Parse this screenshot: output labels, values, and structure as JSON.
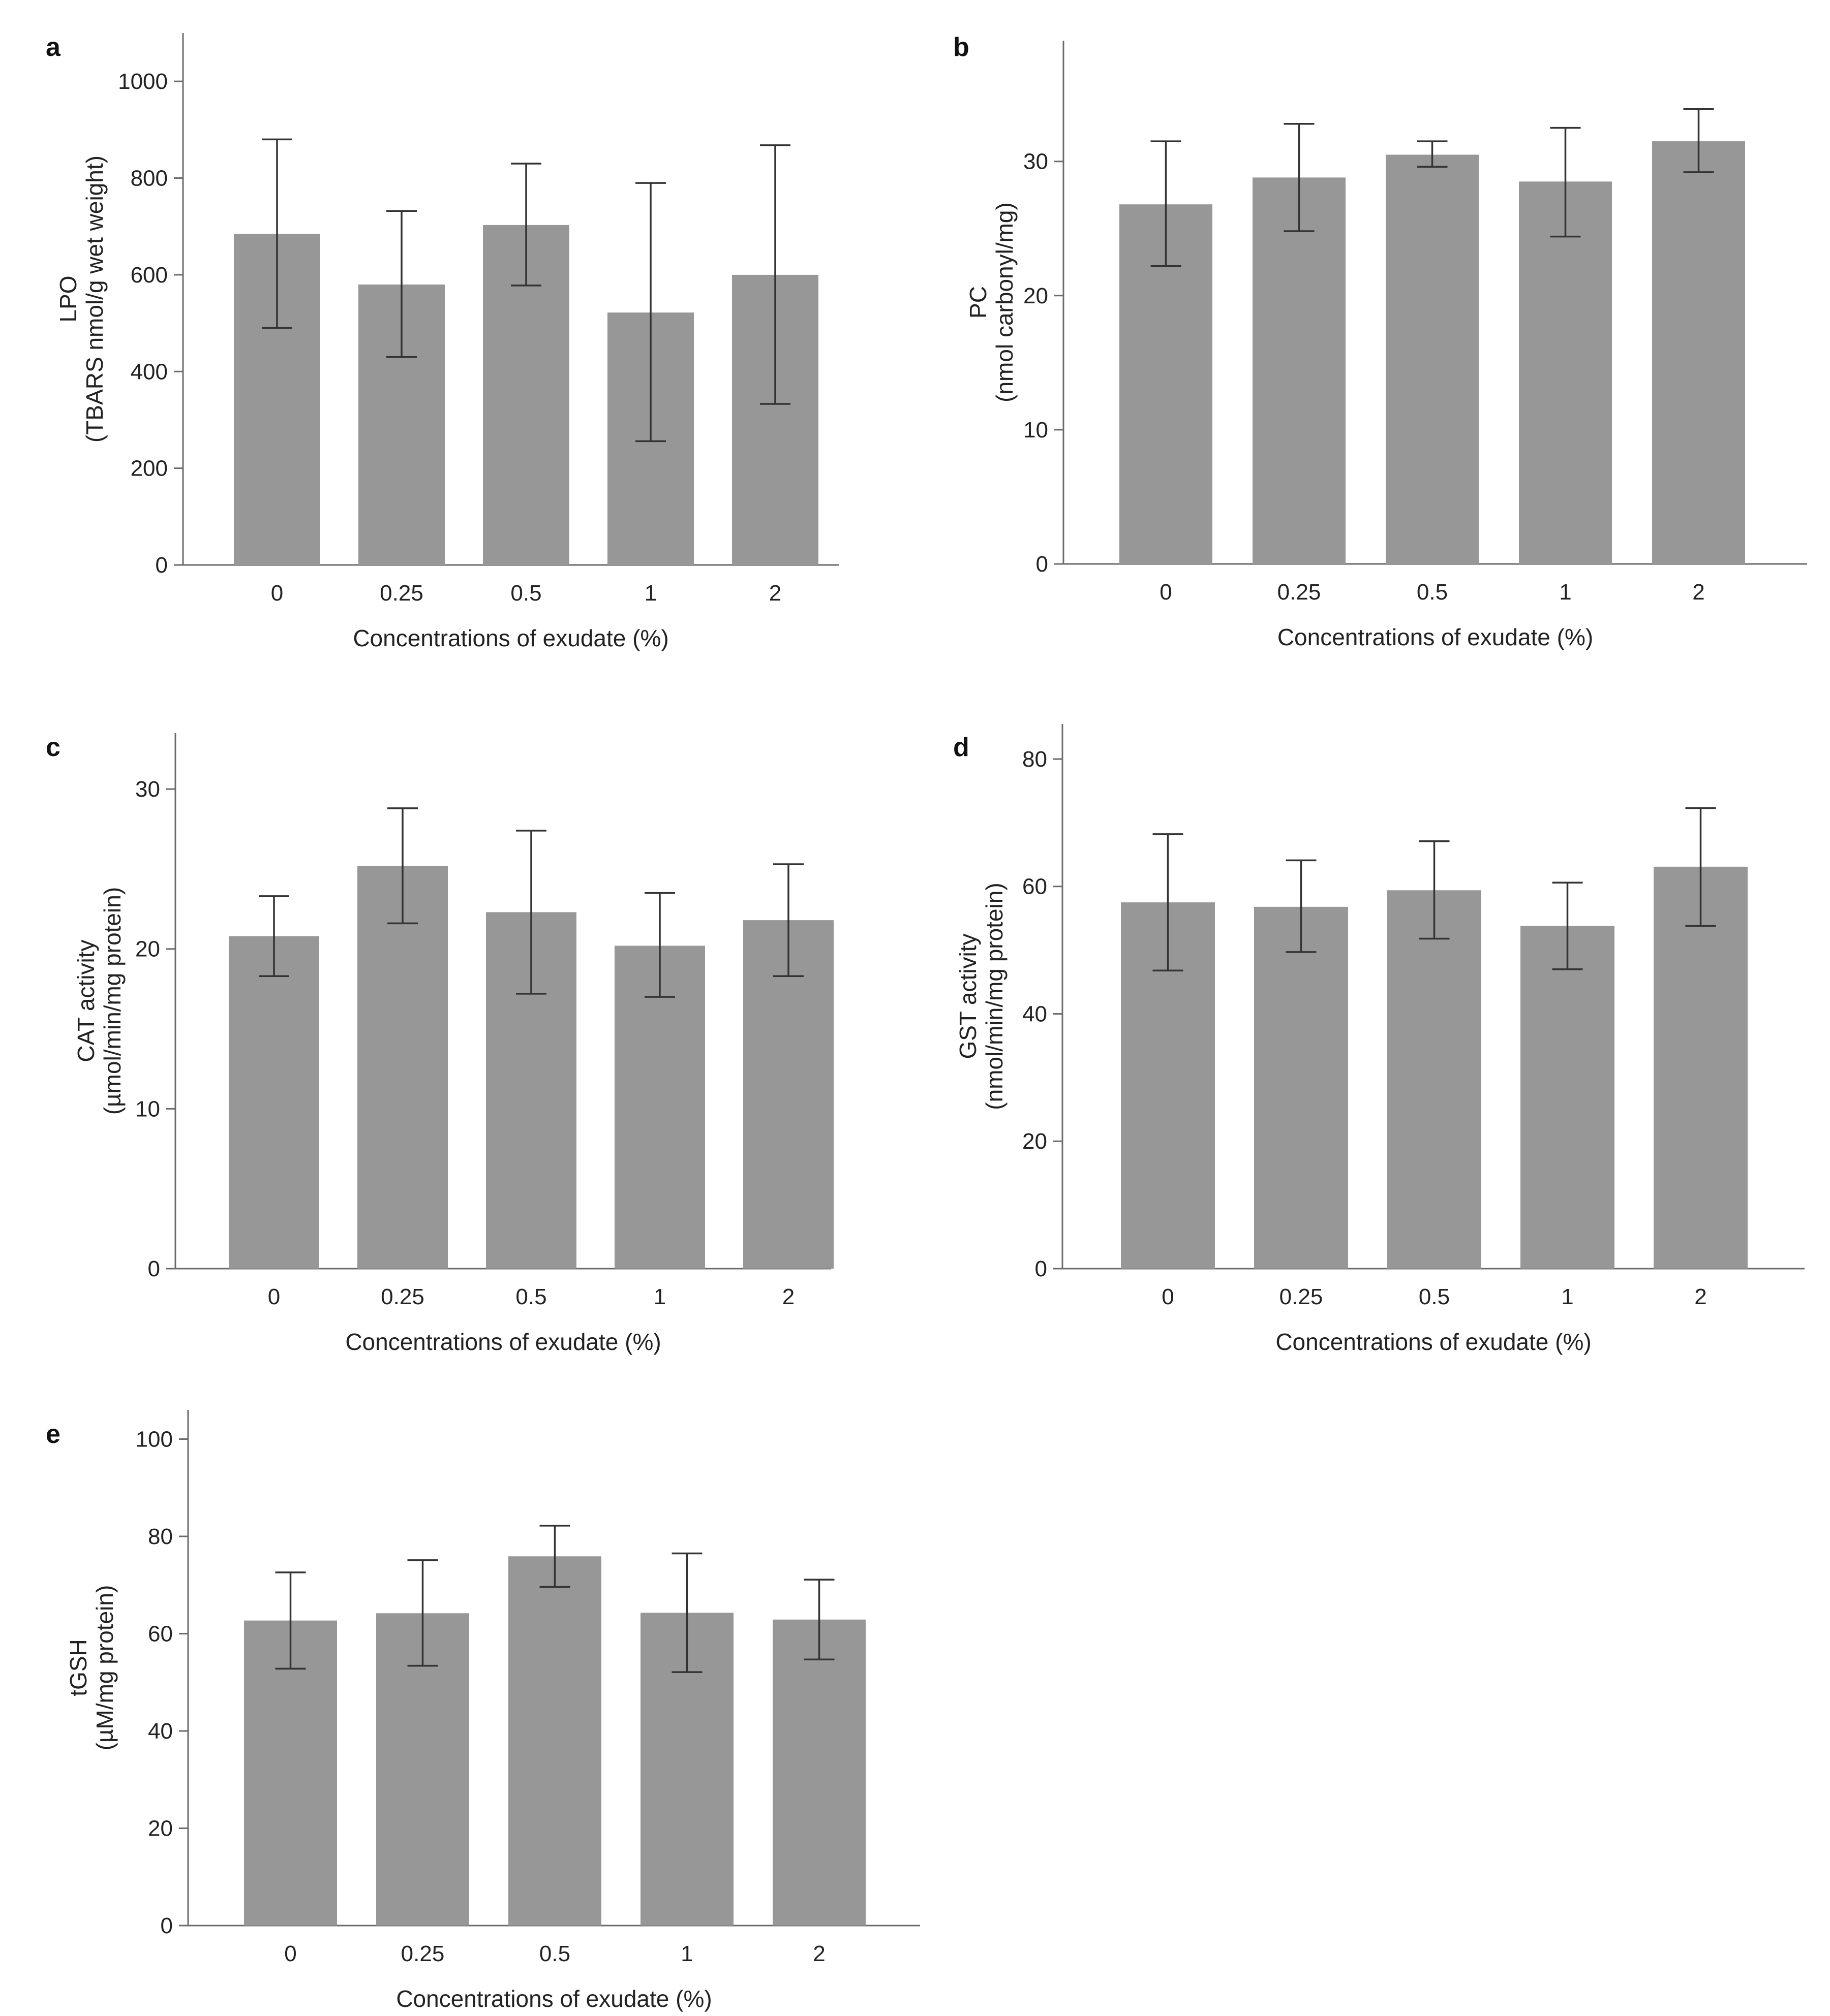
{
  "chart_data": [
    {
      "id": "a",
      "type": "bar",
      "panel_label": "a",
      "categories": [
        "0",
        "0.25",
        "0.5",
        "1",
        "2"
      ],
      "values": [
        685,
        580,
        703,
        522,
        600
      ],
      "errors": [
        [
          490,
          880
        ],
        [
          430,
          732
        ],
        [
          578,
          830
        ],
        [
          256,
          790
        ],
        [
          333,
          868
        ]
      ],
      "xlabel": "Concentrations of exudate (%)",
      "ylabel_lines": [
        "LPO",
        "(TBARS nmol/g wet weight)"
      ],
      "ylim": [
        0,
        1100
      ],
      "yticks": [
        0,
        200,
        400,
        600,
        800,
        1000
      ],
      "grid": false
    },
    {
      "id": "b",
      "type": "bar",
      "panel_label": "b",
      "categories": [
        "0",
        "0.25",
        "0.5",
        "1",
        "2"
      ],
      "values": [
        26.8,
        28.8,
        30.5,
        28.5,
        31.5
      ],
      "errors": [
        [
          22.2,
          31.5
        ],
        [
          24.8,
          32.8
        ],
        [
          29.6,
          31.5
        ],
        [
          24.4,
          32.5
        ],
        [
          29.2,
          33.9
        ]
      ],
      "xlabel": "Concentrations of exudate (%)",
      "ylabel_lines": [
        "PC",
        "(nmol carbonyl/mg)"
      ],
      "ylim": [
        0,
        39
      ],
      "yticks": [
        0,
        10,
        20,
        30
      ],
      "grid": false
    },
    {
      "id": "c",
      "type": "bar",
      "panel_label": "c",
      "categories": [
        "0",
        "0.25",
        "0.5",
        "1",
        "2"
      ],
      "values": [
        20.8,
        25.2,
        22.3,
        20.2,
        21.8
      ],
      "errors": [
        [
          18.3,
          23.3
        ],
        [
          21.6,
          28.8
        ],
        [
          17.2,
          27.4
        ],
        [
          17.0,
          23.5
        ],
        [
          18.3,
          25.3
        ]
      ],
      "xlabel": "Concentrations of exudate (%)",
      "ylabel_lines": [
        "CAT activity",
        "(µmol/min/mg protein)"
      ],
      "ylim": [
        0,
        33.5
      ],
      "yticks": [
        0,
        10,
        20,
        30
      ],
      "grid": false
    },
    {
      "id": "d",
      "type": "bar",
      "panel_label": "d",
      "categories": [
        "0",
        "0.25",
        "0.5",
        "1",
        "2"
      ],
      "values": [
        57.5,
        56.8,
        59.4,
        53.8,
        63.1
      ],
      "errors": [
        [
          46.8,
          68.2
        ],
        [
          49.7,
          64.1
        ],
        [
          51.8,
          67.1
        ],
        [
          47.0,
          60.6
        ],
        [
          53.8,
          72.3
        ]
      ],
      "xlabel": "Concentrations of exudate (%)",
      "ylabel_lines": [
        "GST activity",
        "(nmol/min/mg protein)"
      ],
      "ylim": [
        0,
        85.5
      ],
      "yticks": [
        0,
        20,
        40,
        60,
        80
      ],
      "grid": false
    },
    {
      "id": "e",
      "type": "bar",
      "panel_label": "e",
      "categories": [
        "0",
        "0.25",
        "0.5",
        "1",
        "2"
      ],
      "values": [
        62.7,
        64.2,
        75.9,
        64.3,
        62.9
      ],
      "errors": [
        [
          52.8,
          72.6
        ],
        [
          53.4,
          75.1
        ],
        [
          69.6,
          82.2
        ],
        [
          52.1,
          76.5
        ],
        [
          54.7,
          71.1
        ]
      ],
      "xlabel": "Concentrations of exudate (%)",
      "ylabel_lines": [
        "tGSH",
        "(µM/mg protein)"
      ],
      "ylim": [
        0,
        106
      ],
      "yticks": [
        0,
        20,
        40,
        60,
        80,
        100
      ],
      "grid": false
    }
  ]
}
